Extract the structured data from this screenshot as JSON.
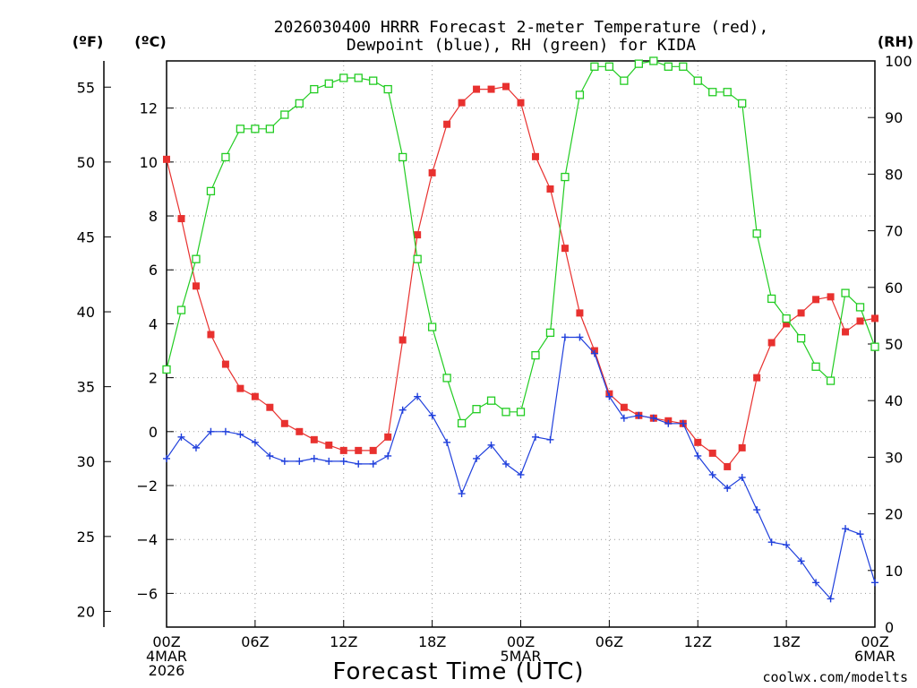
{
  "title_line1": "2026030400 HRRR Forecast 2-meter Temperature (red),",
  "title_line2": "Dewpoint (blue), RH (green) for KIDA",
  "unit_f": "(ºF)",
  "unit_c": "(ºC)",
  "unit_rh": "(RH)",
  "xlabel": "Forecast Time (UTC)",
  "credit": "coolwx.com/modelts",
  "colors": {
    "temp": "#e8312f",
    "dewpoint": "#1f3fdc",
    "rh": "#22cc22",
    "credit": "#e03030"
  },
  "chart_data": {
    "type": "line",
    "title": "2026030400 HRRR Forecast 2-meter Temperature (red), Dewpoint (blue), RH (green) for KIDA",
    "xlabel": "Forecast Time (UTC)",
    "xlim_hours": [
      0,
      48
    ],
    "xticks": [
      {
        "hour": 0,
        "lines": [
          "00Z",
          "4MAR",
          "2026"
        ]
      },
      {
        "hour": 6,
        "lines": [
          "06Z"
        ]
      },
      {
        "hour": 12,
        "lines": [
          "12Z"
        ]
      },
      {
        "hour": 18,
        "lines": [
          "18Z"
        ]
      },
      {
        "hour": 24,
        "lines": [
          "00Z",
          "5MAR"
        ]
      },
      {
        "hour": 30,
        "lines": [
          "06Z"
        ]
      },
      {
        "hour": 36,
        "lines": [
          "12Z"
        ]
      },
      {
        "hour": 42,
        "lines": [
          "18Z"
        ]
      },
      {
        "hour": 48,
        "lines": [
          "00Z",
          "6MAR"
        ]
      }
    ],
    "celsius_axis": {
      "range": [
        -7.25,
        13.75
      ],
      "ticks": [
        -6,
        -4,
        -2,
        0,
        2,
        4,
        6,
        8,
        10,
        12
      ]
    },
    "fahrenheit_axis": {
      "ticks": [
        20,
        25,
        30,
        35,
        40,
        45,
        50,
        55
      ]
    },
    "rh_axis": {
      "range": [
        0,
        100
      ],
      "ticks": [
        0,
        10,
        20,
        30,
        40,
        50,
        60,
        70,
        80,
        90,
        100
      ]
    },
    "grid": true,
    "series": [
      {
        "name": "Temperature",
        "axis": "celsius",
        "marker": "filled-square",
        "values": [
          10.1,
          7.9,
          5.4,
          3.6,
          2.5,
          1.6,
          1.3,
          0.9,
          0.3,
          0.0,
          -0.3,
          -0.5,
          -0.7,
          -0.7,
          -0.7,
          -0.2,
          3.4,
          7.3,
          9.6,
          11.4,
          12.2,
          12.7,
          12.7,
          12.8,
          12.2,
          10.2,
          9.0,
          6.8,
          4.4,
          3.0,
          1.4,
          0.9,
          0.6,
          0.5,
          0.4,
          0.3,
          -0.4,
          -0.8,
          -1.3,
          -0.6,
          2.0,
          3.3,
          4.0,
          4.4,
          4.9,
          5.0,
          3.7,
          4.1,
          4.2
        ]
      },
      {
        "name": "Dewpoint",
        "axis": "celsius",
        "marker": "plus",
        "values": [
          -1.0,
          -0.2,
          -0.6,
          0.0,
          0.0,
          -0.1,
          -0.4,
          -0.9,
          -1.1,
          -1.1,
          -1.0,
          -1.1,
          -1.1,
          -1.2,
          -1.2,
          -0.9,
          0.8,
          1.3,
          0.6,
          -0.4,
          -2.3,
          -1.0,
          -0.5,
          -1.2,
          -1.6,
          -0.2,
          -0.3,
          3.5,
          3.5,
          2.9,
          1.3,
          0.5,
          0.6,
          0.5,
          0.3,
          0.3,
          -0.9,
          -1.6,
          -2.1,
          -1.7,
          -2.9,
          -4.1,
          -4.2,
          -4.8,
          -5.6,
          -6.2,
          -3.6,
          -3.8,
          -5.6
        ]
      },
      {
        "name": "RH",
        "axis": "rh",
        "marker": "open-square",
        "values": [
          45.5,
          56,
          65,
          77,
          83,
          88,
          88,
          88,
          90.5,
          92.5,
          95,
          96,
          97,
          97,
          96.5,
          95,
          83,
          65,
          53,
          44,
          36,
          38.5,
          40,
          38,
          38,
          48,
          52,
          79.5,
          94,
          99,
          99,
          96.5,
          99.5,
          100,
          99,
          99,
          96.5,
          94.5,
          94.5,
          92.5,
          69.5,
          58,
          54.5,
          51,
          46,
          43.5,
          59,
          56.5,
          49.5
        ]
      }
    ]
  }
}
